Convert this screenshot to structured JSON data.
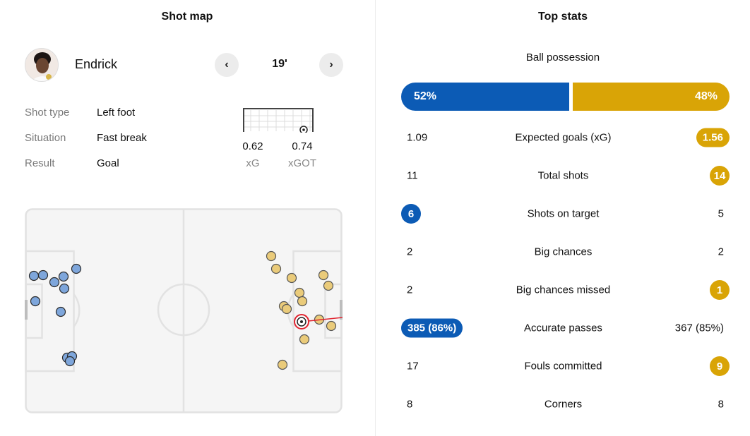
{
  "shot_map": {
    "title": "Shot map",
    "player": {
      "name": "Endrick",
      "minute": "19'",
      "prev_label": "‹",
      "next_label": "›"
    },
    "details": [
      {
        "label": "Shot type",
        "value": "Left foot"
      },
      {
        "label": "Situation",
        "value": "Fast break"
      },
      {
        "label": "Result",
        "value": "Goal"
      }
    ],
    "xg": {
      "value": "0.62",
      "label": "xG"
    },
    "xgot": {
      "value": "0.74",
      "label": "xGOT"
    },
    "colors": {
      "home": "#7ea6db",
      "away": "#eacb7a",
      "selected": "#e0242f"
    }
  },
  "top_stats": {
    "title": "Top stats",
    "possession": {
      "label": "Ball possession",
      "home": "52%",
      "away": "48%"
    },
    "rows": [
      {
        "name": "Expected goals (xG)",
        "home": "1.09",
        "away": "1.56",
        "highlight": "away"
      },
      {
        "name": "Total shots",
        "home": "11",
        "away": "14",
        "highlight": "away"
      },
      {
        "name": "Shots on target",
        "home": "6",
        "away": "5",
        "highlight": "home"
      },
      {
        "name": "Big chances",
        "home": "2",
        "away": "2",
        "highlight": "none"
      },
      {
        "name": "Big chances missed",
        "home": "2",
        "away": "1",
        "highlight": "away"
      },
      {
        "name": "Accurate passes",
        "home": "385 (86%)",
        "away": "367 (85%)",
        "highlight": "home"
      },
      {
        "name": "Fouls committed",
        "home": "17",
        "away": "9",
        "highlight": "away"
      },
      {
        "name": "Corners",
        "home": "8",
        "away": "8",
        "highlight": "none"
      }
    ],
    "colors": {
      "home": "#0c5bb5",
      "away": "#d9a406"
    }
  }
}
